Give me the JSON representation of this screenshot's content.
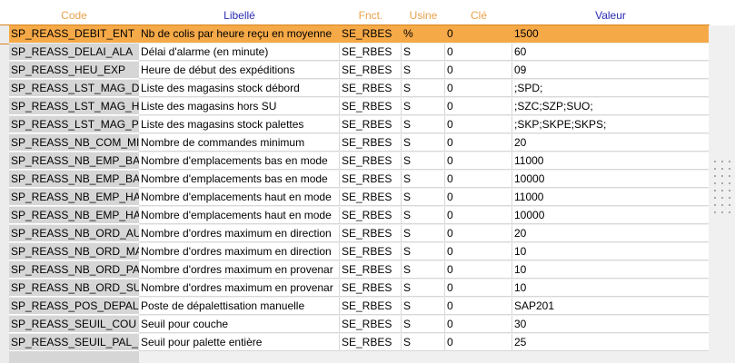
{
  "columns": {
    "code": "Code",
    "libelle": "Libellé",
    "fnct": "Fnct.",
    "usine": "Usine",
    "cle": "Clé",
    "valeur": "Valeur"
  },
  "colors": {
    "header_orange": "#e8a14d",
    "header_blue": "#2b2bb3",
    "selection": "#f6a947",
    "code_bg": "#d6d6d6"
  },
  "rows": [
    {
      "code": "SP_REASS_DEBIT_ENT",
      "libelle": "Nb de colis par heure reçu en moyenne",
      "fnct": "SE_RBES",
      "usine": "%",
      "cle": "0",
      "valeur": "1500",
      "selected": true
    },
    {
      "code": "SP_REASS_DELAI_ALA",
      "libelle": "Délai d'alarme (en minute)",
      "fnct": "SE_RBES",
      "usine": "S",
      "cle": "0",
      "valeur": "60"
    },
    {
      "code": "SP_REASS_HEU_EXP",
      "libelle": "Heure de début des expéditions",
      "fnct": "SE_RBES",
      "usine": "S",
      "cle": "0",
      "valeur": "09"
    },
    {
      "code": "SP_REASS_LST_MAG_D",
      "libelle": "Liste des magasins stock débord",
      "fnct": "SE_RBES",
      "usine": "S",
      "cle": "0",
      "valeur": ";SPD;"
    },
    {
      "code": "SP_REASS_LST_MAG_H",
      "libelle": "Liste des magasins hors SU",
      "fnct": "SE_RBES",
      "usine": "S",
      "cle": "0",
      "valeur": ";SZC;SZP;SUO;"
    },
    {
      "code": "SP_REASS_LST_MAG_P",
      "libelle": "Liste des magasins stock palettes",
      "fnct": "SE_RBES",
      "usine": "S",
      "cle": "0",
      "valeur": ";SKP;SKPE;SKPS;"
    },
    {
      "code": "SP_REASS_NB_COM_MII",
      "libelle": "Nombre de commandes minimum",
      "fnct": "SE_RBES",
      "usine": "S",
      "cle": "0",
      "valeur": "20"
    },
    {
      "code": "SP_REASS_NB_EMP_BA",
      "libelle": "Nombre d'emplacements bas en mode",
      "fnct": "SE_RBES",
      "usine": "S",
      "cle": "0",
      "valeur": "11000"
    },
    {
      "code": "SP_REASS_NB_EMP_BA",
      "libelle": "Nombre d'emplacements bas en mode",
      "fnct": "SE_RBES",
      "usine": "S",
      "cle": "0",
      "valeur": "10000"
    },
    {
      "code": "SP_REASS_NB_EMP_HA",
      "libelle": "Nombre d'emplacements haut en mode",
      "fnct": "SE_RBES",
      "usine": "S",
      "cle": "0",
      "valeur": "11000"
    },
    {
      "code": "SP_REASS_NB_EMP_HA",
      "libelle": "Nombre d'emplacements haut en mode",
      "fnct": "SE_RBES",
      "usine": "S",
      "cle": "0",
      "valeur": "10000"
    },
    {
      "code": "SP_REASS_NB_ORD_AU",
      "libelle": "Nombre d'ordres maximum en direction",
      "fnct": "SE_RBES",
      "usine": "S",
      "cle": "0",
      "valeur": "20"
    },
    {
      "code": "SP_REASS_NB_ORD_MA",
      "libelle": "Nombre d'ordres maximum en direction",
      "fnct": "SE_RBES",
      "usine": "S",
      "cle": "0",
      "valeur": "10"
    },
    {
      "code": "SP_REASS_NB_ORD_PA",
      "libelle": "Nombre d'ordres maximum en provenar",
      "fnct": "SE_RBES",
      "usine": "S",
      "cle": "0",
      "valeur": "10"
    },
    {
      "code": "SP_REASS_NB_ORD_SU",
      "libelle": "Nombre d'ordres maximum en provenar",
      "fnct": "SE_RBES",
      "usine": "S",
      "cle": "0",
      "valeur": "10"
    },
    {
      "code": "SP_REASS_POS_DEPAL",
      "libelle": "Poste de dépalettisation manuelle",
      "fnct": "SE_RBES",
      "usine": "S",
      "cle": "0",
      "valeur": "SAP201"
    },
    {
      "code": "SP_REASS_SEUIL_COU",
      "libelle": "Seuil pour couche",
      "fnct": "SE_RBES",
      "usine": "S",
      "cle": "0",
      "valeur": "30"
    },
    {
      "code": "SP_REASS_SEUIL_PAL_",
      "libelle": "Seuil pour palette entière",
      "fnct": "SE_RBES",
      "usine": "S",
      "cle": "0",
      "valeur": "25"
    }
  ]
}
